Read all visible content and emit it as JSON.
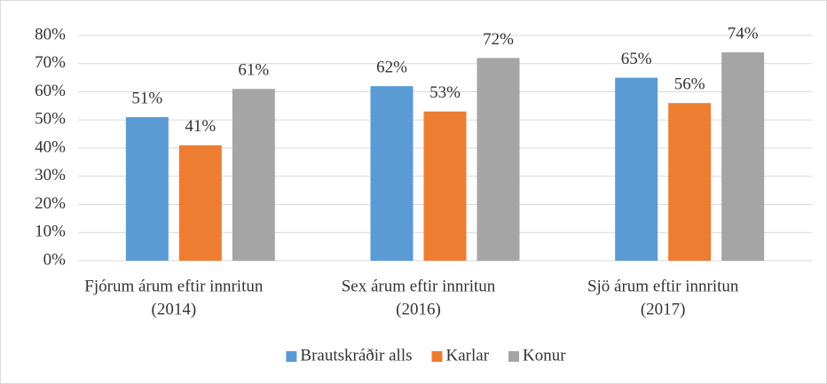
{
  "chart_data": {
    "type": "bar",
    "categories": [
      [
        "Fjórum árum eftir innritun",
        "(2014)"
      ],
      [
        "Sex árum eftir innritun",
        "(2016)"
      ],
      [
        "Sjö árum eftir innritun",
        "(2017)"
      ]
    ],
    "series": [
      {
        "name": "Brautskráðir alls",
        "color": "#5b9bd5",
        "values": [
          51,
          62,
          65
        ],
        "value_labels": [
          "51%",
          "62%",
          "65%"
        ]
      },
      {
        "name": "Karlar",
        "color": "#ed7d31",
        "values": [
          41,
          53,
          56
        ],
        "value_labels": [
          "41%",
          "53%",
          "56%"
        ]
      },
      {
        "name": "Konur",
        "color": "#a5a5a5",
        "values": [
          61,
          72,
          74
        ],
        "value_labels": [
          "61%",
          "72%",
          "74%"
        ]
      }
    ],
    "ylim": [
      0,
      80
    ],
    "yticks": [
      {
        "value": 0,
        "label": "0%"
      },
      {
        "value": 10,
        "label": "10%"
      },
      {
        "value": 20,
        "label": "20%"
      },
      {
        "value": 30,
        "label": "30%"
      },
      {
        "value": 40,
        "label": "40%"
      },
      {
        "value": 50,
        "label": "50%"
      },
      {
        "value": 60,
        "label": "60%"
      },
      {
        "value": 70,
        "label": "70%"
      },
      {
        "value": 80,
        "label": "80%"
      }
    ],
    "grid": true,
    "legend": "bottom"
  }
}
